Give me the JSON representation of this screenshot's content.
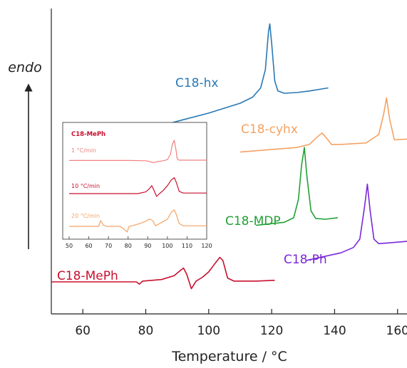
{
  "chart_data": [
    {
      "type": "line",
      "title": "",
      "xlabel": "Temperature / °C",
      "ylabel": "endo",
      "xlim": [
        50,
        163
      ],
      "xticks": [
        60,
        80,
        100,
        120,
        140,
        160
      ],
      "series": [
        {
          "name": "C18-hx",
          "color": "#2878b5",
          "x": [
            86,
            100,
            110,
            114,
            116.5,
            118,
            119,
            119.4,
            120,
            121,
            122,
            124,
            128,
            132,
            138
          ],
          "y": [
            2.48,
            2.63,
            2.76,
            2.84,
            2.96,
            3.2,
            3.7,
            3.8,
            3.55,
            3.05,
            2.92,
            2.89,
            2.9,
            2.92,
            2.96
          ]
        },
        {
          "name": "C18-cyhx",
          "color": "#f4a263",
          "x": [
            110,
            128,
            132,
            134,
            136,
            137.5,
            139,
            142,
            150,
            154,
            155.5,
            156.5,
            157.5,
            159,
            163
          ],
          "y": [
            2.12,
            2.18,
            2.22,
            2.3,
            2.37,
            2.3,
            2.22,
            2.22,
            2.24,
            2.35,
            2.6,
            2.83,
            2.55,
            2.28,
            2.29
          ]
        },
        {
          "name": "C18-MDP",
          "color": "#22a035",
          "x": [
            115,
            124,
            127,
            128.5,
            129.5,
            130.4,
            131.2,
            132.5,
            134,
            137,
            141
          ],
          "y": [
            1.16,
            1.2,
            1.26,
            1.5,
            1.95,
            2.18,
            1.8,
            1.35,
            1.25,
            1.24,
            1.26
          ]
        },
        {
          "name": "C18-Ph",
          "color": "#7b27d8",
          "x": [
            131,
            142,
            146,
            148,
            149.5,
            150.4,
            151.3,
            152.5,
            154,
            157,
            163
          ],
          "y": [
            0.7,
            0.8,
            0.87,
            0.98,
            1.4,
            1.7,
            1.35,
            0.98,
            0.92,
            0.93,
            0.95
          ]
        },
        {
          "name": "C18-MePh",
          "color": "#c8102e",
          "x": [
            50,
            70,
            77,
            78,
            79,
            85,
            89,
            91,
            92,
            93,
            94.5,
            96,
            98,
            100,
            102,
            103.5,
            104.5,
            106,
            108,
            115,
            121
          ],
          "y": [
            0.42,
            0.42,
            0.42,
            0.39,
            0.43,
            0.45,
            0.5,
            0.57,
            0.6,
            0.52,
            0.33,
            0.43,
            0.48,
            0.55,
            0.66,
            0.74,
            0.7,
            0.47,
            0.43,
            0.43,
            0.44
          ]
        }
      ]
    },
    {
      "type": "line",
      "title": "C18-MePh",
      "xlim": [
        50,
        120
      ],
      "xticks": [
        50,
        60,
        70,
        80,
        90,
        100,
        110,
        120
      ],
      "series": [
        {
          "name": "1 °C/min",
          "color": "#f08080",
          "x": [
            50,
            80,
            89,
            91,
            93,
            95,
            98,
            100,
            101.5,
            102.5,
            103.5,
            104.5,
            105,
            106,
            108,
            112,
            120
          ],
          "y": [
            0.19,
            0.19,
            0.18,
            0.15,
            0.11,
            0.15,
            0.18,
            0.22,
            0.4,
            0.75,
            0.9,
            0.5,
            0.25,
            0.2,
            0.2,
            0.2,
            0.2
          ]
        },
        {
          "name": "10 °C/min",
          "color": "#c8102e",
          "x": [
            50,
            85,
            89,
            91,
            92,
            93,
            94.5,
            96,
            98,
            100,
            102,
            103.5,
            104.5,
            106,
            108,
            120
          ],
          "y": [
            0.2,
            0.2,
            0.26,
            0.38,
            0.48,
            0.34,
            0.1,
            0.2,
            0.32,
            0.48,
            0.68,
            0.76,
            0.6,
            0.28,
            0.22,
            0.22
          ]
        },
        {
          "name": "20 °C/min",
          "color": "#f4a263",
          "x": [
            50,
            65,
            66,
            67.5,
            69,
            76,
            78,
            79.5,
            80.5,
            82,
            86,
            89,
            91,
            92.5,
            94,
            96,
            100,
            102,
            103.5,
            104.5,
            106,
            108,
            120
          ],
          "y": [
            0.2,
            0.2,
            0.4,
            0.24,
            0.2,
            0.2,
            0.1,
            0.0,
            0.2,
            0.22,
            0.3,
            0.38,
            0.46,
            0.4,
            0.22,
            0.3,
            0.45,
            0.7,
            0.78,
            0.62,
            0.3,
            0.22,
            0.22
          ]
        }
      ]
    }
  ]
}
